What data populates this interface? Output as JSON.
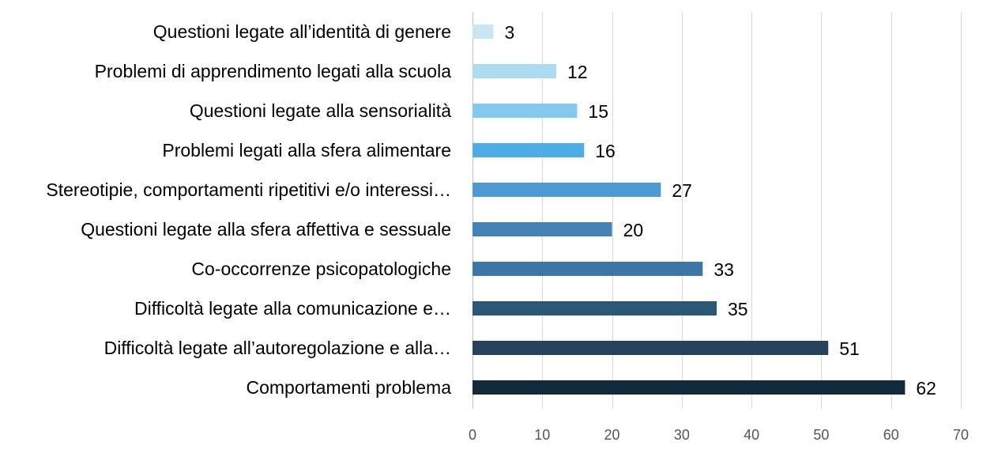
{
  "chart_data": {
    "type": "bar",
    "orientation": "horizontal",
    "categories": [
      "Questioni legate all’identità di genere",
      "Problemi di apprendimento legati alla scuola",
      "Questioni legate alla sensorialità",
      "Problemi legati alla sfera alimentare",
      "Stereotipie, comportamenti ripetitivi e/o interessi…",
      "Questioni legate alla sfera affettiva e sessuale",
      "Co-occorrenze psicopatologiche",
      "Difficoltà legate alla comunicazione e…",
      "Difficoltà legate all’autoregolazione e alla…",
      "Comportamenti problema"
    ],
    "values": [
      3,
      12,
      15,
      16,
      27,
      20,
      33,
      35,
      51,
      62
    ],
    "colors": [
      "#c9e4f3",
      "#aadbf1",
      "#85c9ec",
      "#4fade6",
      "#4b9ad3",
      "#4582b6",
      "#3b77a6",
      "#2b5876",
      "#26435e",
      "#112a3c"
    ],
    "xlim": [
      0,
      70
    ],
    "xticks": [
      0,
      10,
      20,
      30,
      40,
      50,
      60,
      70
    ],
    "grid": true,
    "title": "",
    "xlabel": "",
    "ylabel": ""
  }
}
